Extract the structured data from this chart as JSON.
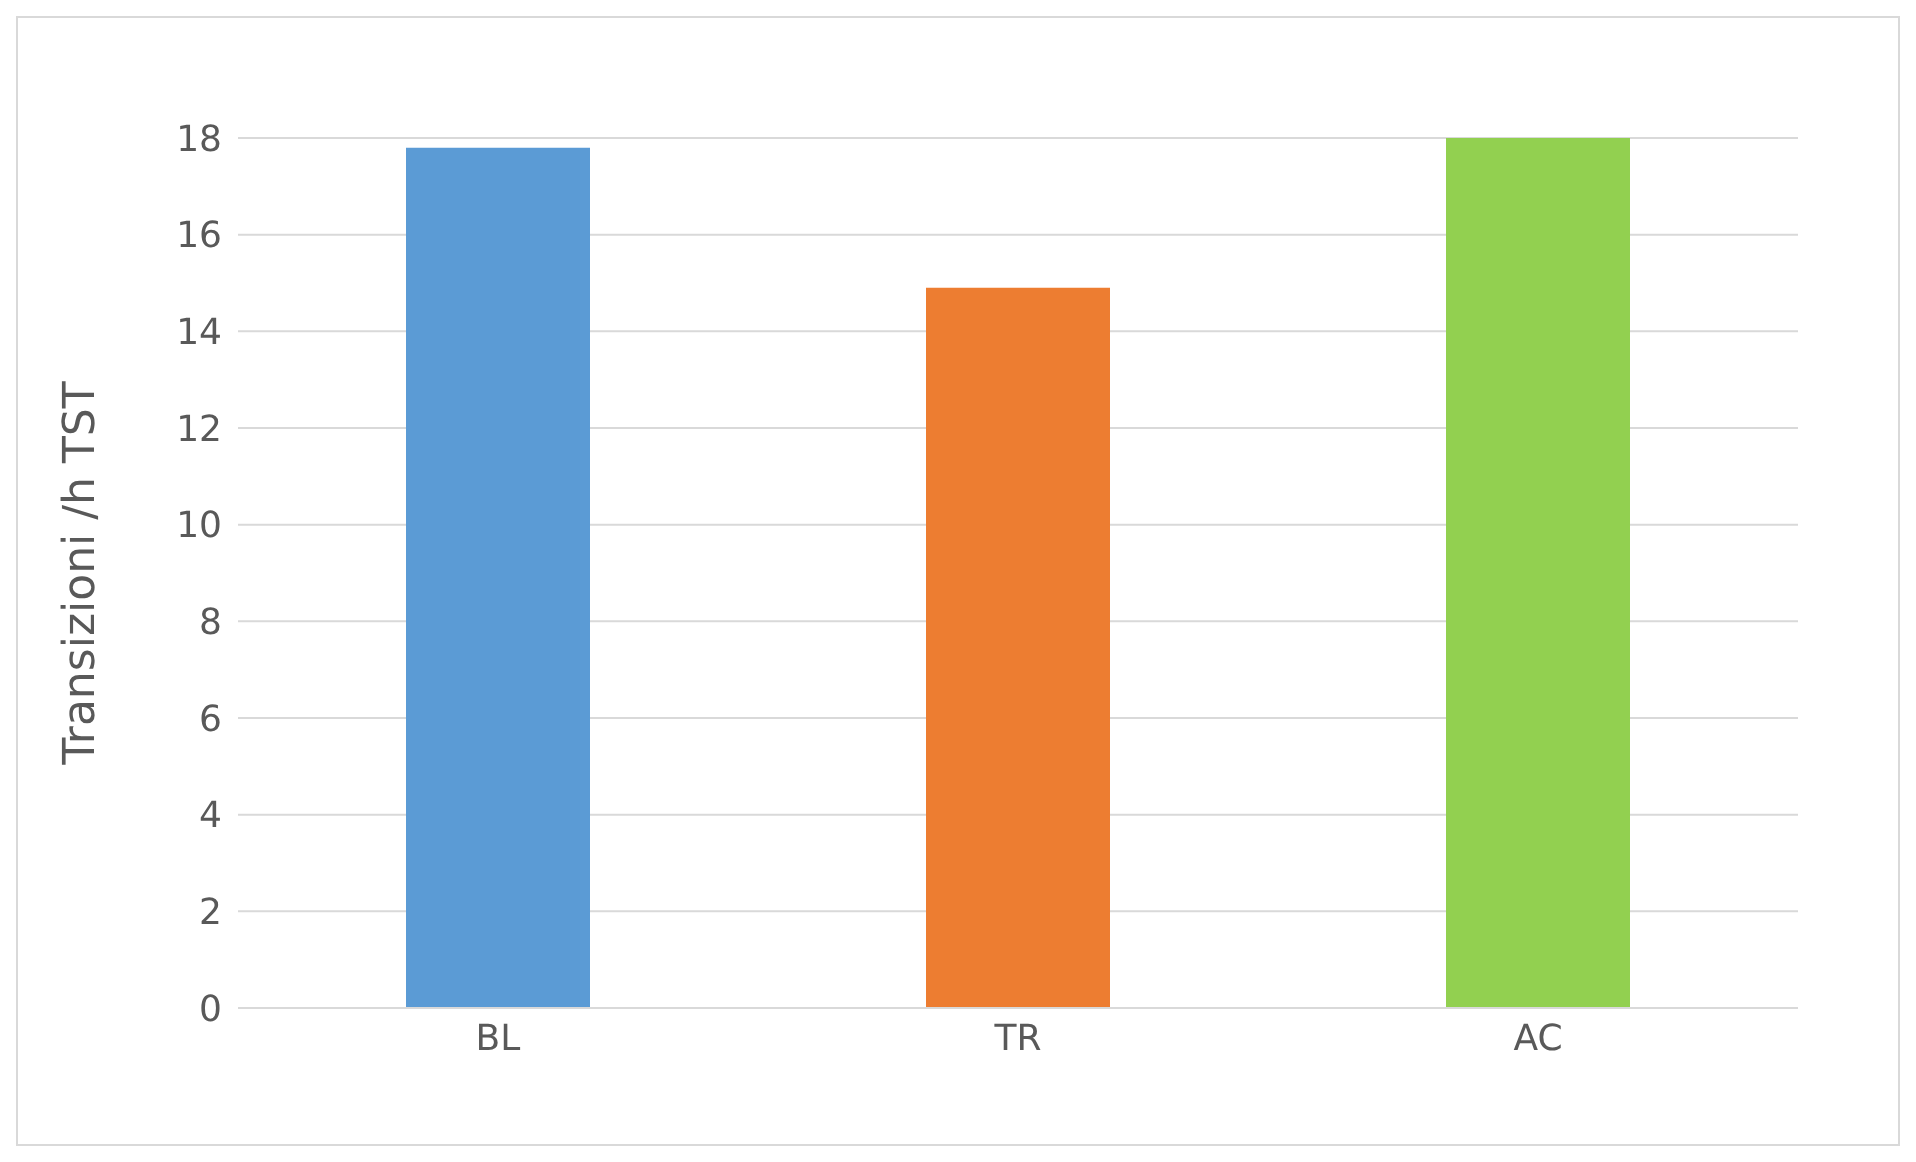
{
  "chart_data": {
    "type": "bar",
    "ylabel": "Transizioni /h TST",
    "categories": [
      "BL",
      "TR",
      "AC"
    ],
    "values": [
      17.8,
      14.9,
      18.0
    ],
    "colors": [
      "#5b9bd5",
      "#ed7d31",
      "#92d050"
    ],
    "ylim": [
      0,
      18
    ],
    "yticks": [
      0,
      2,
      4,
      6,
      8,
      10,
      12,
      14,
      16,
      18
    ],
    "grid": "y"
  }
}
